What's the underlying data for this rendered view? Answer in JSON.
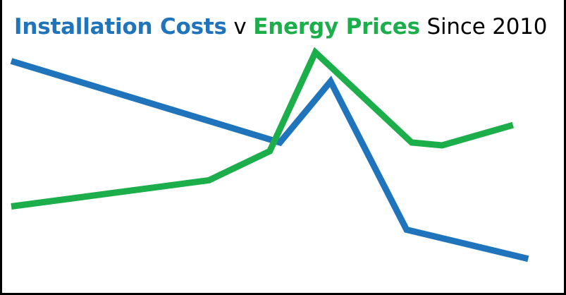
{
  "title": {
    "part1": "Installation Costs",
    "part2": " v ",
    "part3": "Energy Prices",
    "part4": " Since 2010"
  },
  "colors": {
    "installation": "#1F74BB",
    "energy": "#1DAE4C",
    "axis": "#000000"
  },
  "chart_data": {
    "type": "line",
    "title": "Installation Costs v Energy Prices Since 2010",
    "xlabel": "",
    "ylabel": "",
    "grid": false,
    "legend": "none",
    "x": [
      0,
      1,
      2,
      3,
      4,
      5,
      6,
      7,
      8,
      9,
      10
    ],
    "xlim": [
      0,
      10
    ],
    "ylim": [
      0,
      100
    ],
    "series": [
      {
        "name": "Installation Costs",
        "x": [
          0,
          5.3,
          6.3,
          7.8,
          10.2
        ],
        "values": [
          79,
          51,
          72,
          21,
          11
        ]
      },
      {
        "name": "Energy Prices",
        "x": [
          0,
          3.9,
          5.1,
          6.0,
          7.9,
          8.5,
          9.9
        ],
        "values": [
          29,
          38,
          48,
          82,
          51,
          50,
          57
        ]
      }
    ]
  }
}
